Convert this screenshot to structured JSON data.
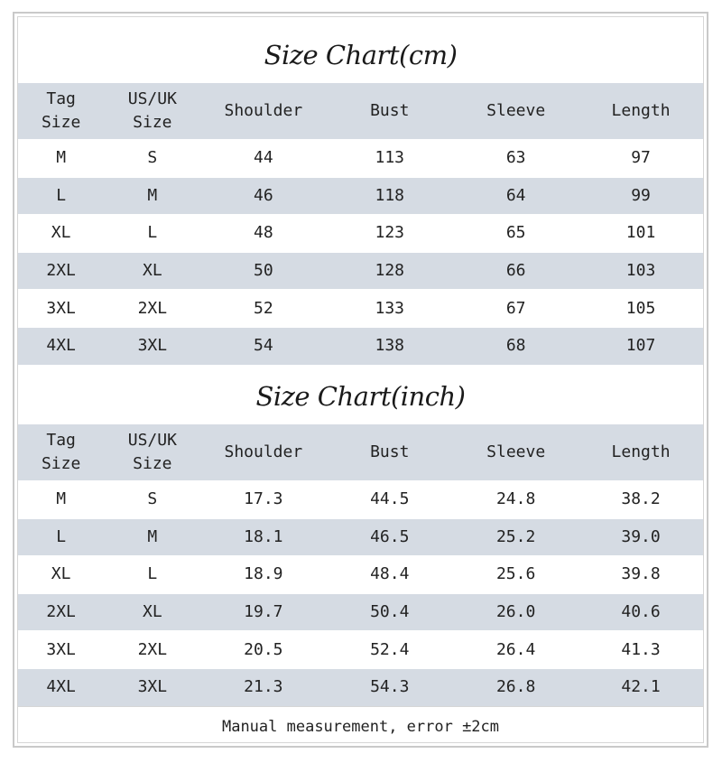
{
  "cm_chart": {
    "title": "Size Chart(cm)",
    "headers": {
      "tag_line1": "Tag",
      "tag_line2": "Size",
      "us_line1": "US/UK",
      "us_line2": "Size",
      "shoulder": "Shoulder",
      "bust": "Bust",
      "sleeve": "Sleeve",
      "length": "Length"
    },
    "rows": [
      {
        "tag": "M",
        "us": "S",
        "shoulder": "44",
        "bust": "113",
        "sleeve": "63",
        "length": "97"
      },
      {
        "tag": "L",
        "us": "M",
        "shoulder": "46",
        "bust": "118",
        "sleeve": "64",
        "length": "99"
      },
      {
        "tag": "XL",
        "us": "L",
        "shoulder": "48",
        "bust": "123",
        "sleeve": "65",
        "length": "101"
      },
      {
        "tag": "2XL",
        "us": "XL",
        "shoulder": "50",
        "bust": "128",
        "sleeve": "66",
        "length": "103"
      },
      {
        "tag": "3XL",
        "us": "2XL",
        "shoulder": "52",
        "bust": "133",
        "sleeve": "67",
        "length": "105"
      },
      {
        "tag": "4XL",
        "us": "3XL",
        "shoulder": "54",
        "bust": "138",
        "sleeve": "68",
        "length": "107"
      }
    ]
  },
  "inch_chart": {
    "title": "Size Chart(inch)",
    "headers": {
      "tag_line1": "Tag",
      "tag_line2": "Size",
      "us_line1": "US/UK",
      "us_line2": "Size",
      "shoulder": "Shoulder",
      "bust": "Bust",
      "sleeve": "Sleeve",
      "length": "Length"
    },
    "rows": [
      {
        "tag": "M",
        "us": "S",
        "shoulder": "17.3",
        "bust": "44.5",
        "sleeve": "24.8",
        "length": "38.2"
      },
      {
        "tag": "L",
        "us": "M",
        "shoulder": "18.1",
        "bust": "46.5",
        "sleeve": "25.2",
        "length": "39.0"
      },
      {
        "tag": "XL",
        "us": "L",
        "shoulder": "18.9",
        "bust": "48.4",
        "sleeve": "25.6",
        "length": "39.8"
      },
      {
        "tag": "2XL",
        "us": "XL",
        "shoulder": "19.7",
        "bust": "50.4",
        "sleeve": "26.0",
        "length": "40.6"
      },
      {
        "tag": "3XL",
        "us": "2XL",
        "shoulder": "20.5",
        "bust": "52.4",
        "sleeve": "26.4",
        "length": "41.3"
      },
      {
        "tag": "4XL",
        "us": "3XL",
        "shoulder": "21.3",
        "bust": "54.3",
        "sleeve": "26.8",
        "length": "42.1"
      }
    ]
  },
  "footer": {
    "note": "Manual measurement, error ±2cm"
  },
  "colors": {
    "stripe": "#d5dbe3",
    "border": "#c9c9c9",
    "text": "#222222"
  }
}
